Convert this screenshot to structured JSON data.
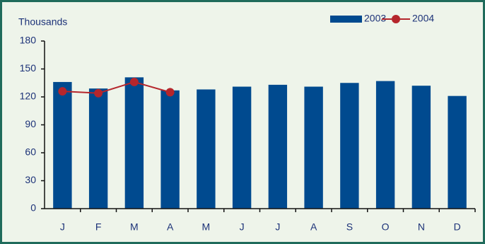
{
  "chart_data": {
    "type": "bar",
    "y_label": "Thousands",
    "categories": [
      "J",
      "F",
      "M",
      "A",
      "M",
      "J",
      "J",
      "A",
      "S",
      "O",
      "N",
      "D"
    ],
    "series": [
      {
        "name": "2003",
        "type": "bar",
        "color": "#004a8f",
        "values": [
          136,
          129,
          141,
          127,
          128,
          131,
          133,
          131,
          135,
          137,
          132,
          121
        ]
      },
      {
        "name": "2004",
        "type": "line",
        "color": "#b5262c",
        "values": [
          126,
          124,
          136,
          125,
          null,
          null,
          null,
          null,
          null,
          null,
          null,
          null
        ]
      }
    ],
    "ylim": [
      0,
      180
    ],
    "yticks": [
      0,
      30,
      60,
      90,
      120,
      150,
      180
    ],
    "grid": false,
    "legend": "top-right"
  }
}
